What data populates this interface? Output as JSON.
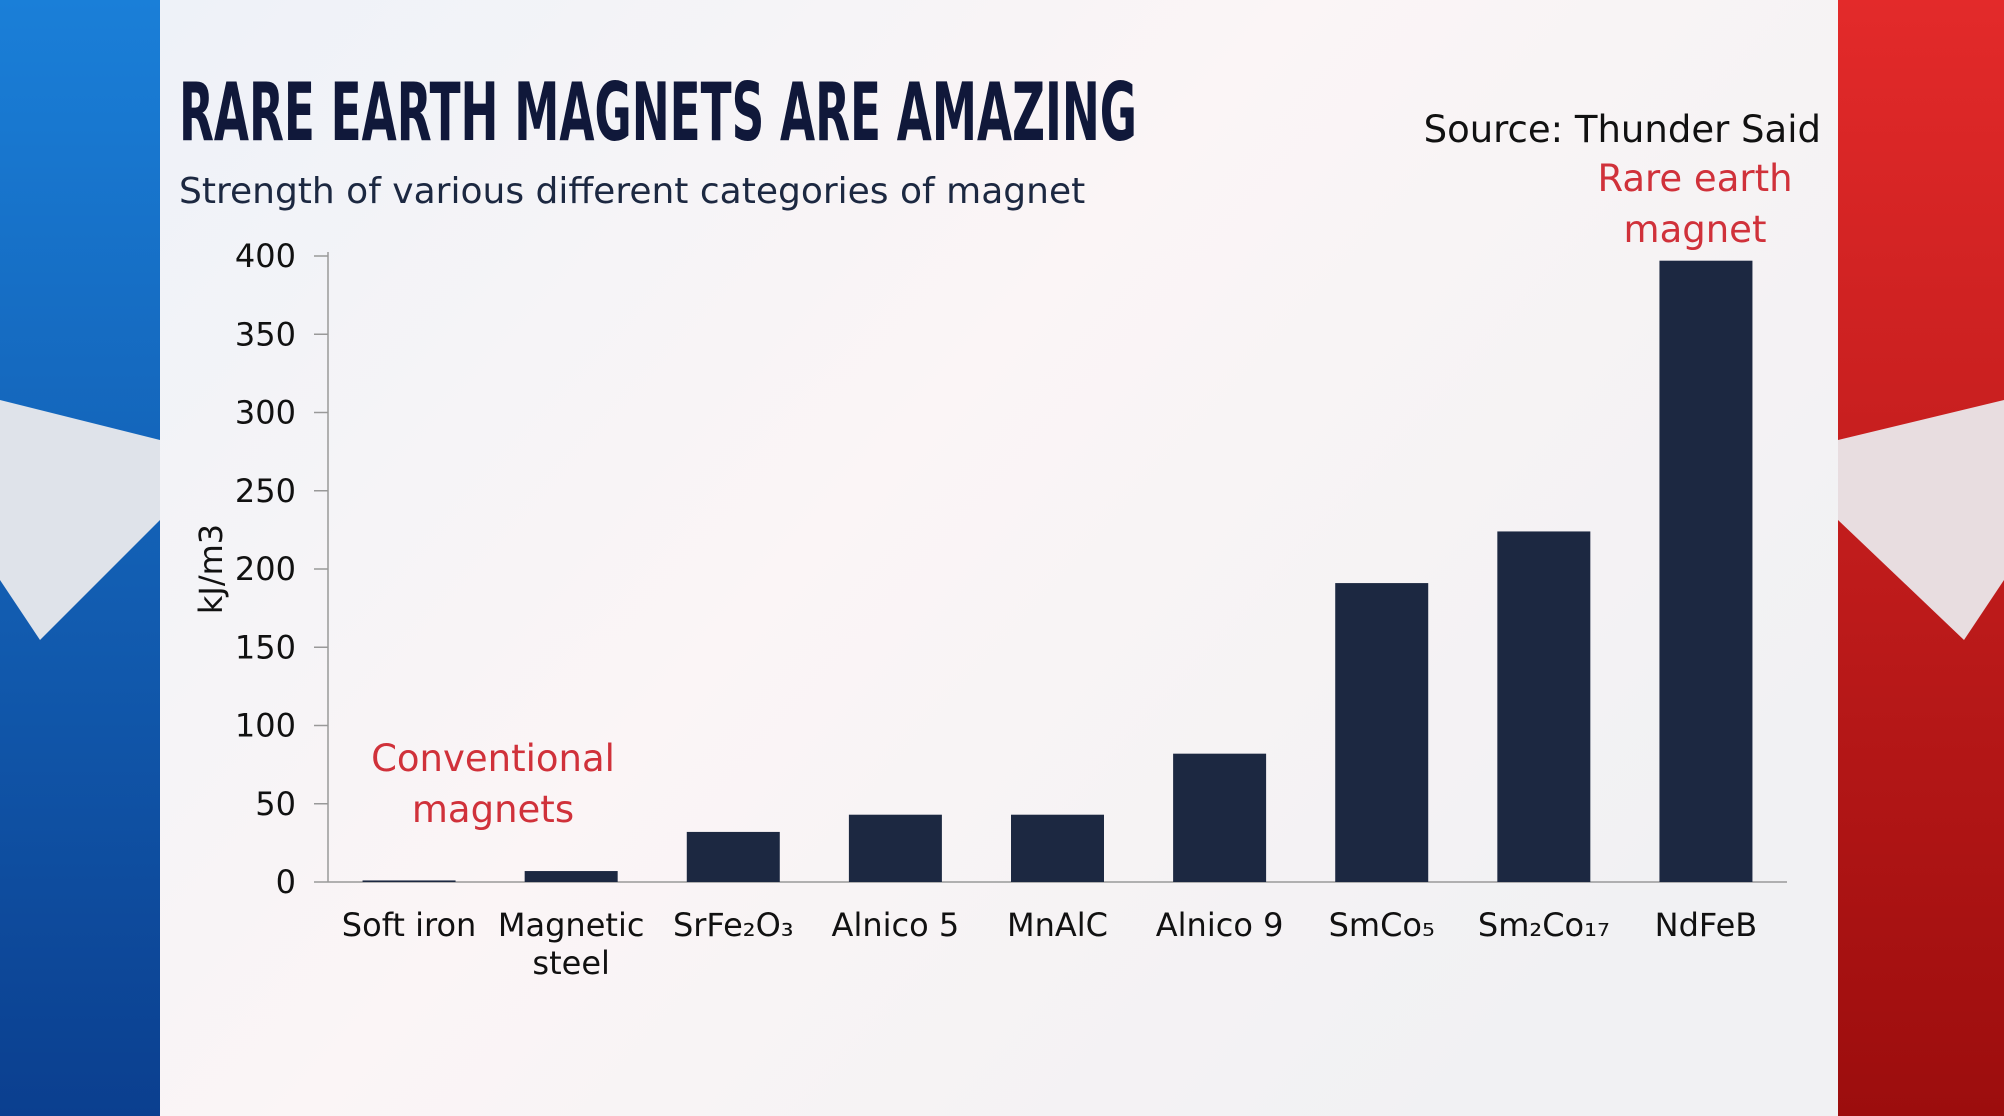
{
  "chart_data": {
    "type": "bar",
    "title": "RARE EARTH MAGNETS ARE AMAZING",
    "subtitle": "Strength of various different categories of magnet",
    "source": "Source: Thunder Said",
    "y_label": "kJ/m3",
    "annotations": [
      "Conventional magnets",
      "Rare earth magnet"
    ],
    "categories": [
      "Soft iron",
      "Magnetic steel",
      "SrFe₂O₃",
      "Alnico 5",
      "MnAlC",
      "Alnico 9",
      "SmCo₅",
      "Sm₂Co₁₇",
      "NdFeB"
    ],
    "values": [
      1,
      7,
      32,
      43,
      43,
      82,
      191,
      224,
      397
    ],
    "color": "#1c2841",
    "ylim": [
      0,
      400
    ],
    "yticks": [
      0,
      50,
      100,
      150,
      200,
      250,
      300,
      350,
      400
    ]
  }
}
